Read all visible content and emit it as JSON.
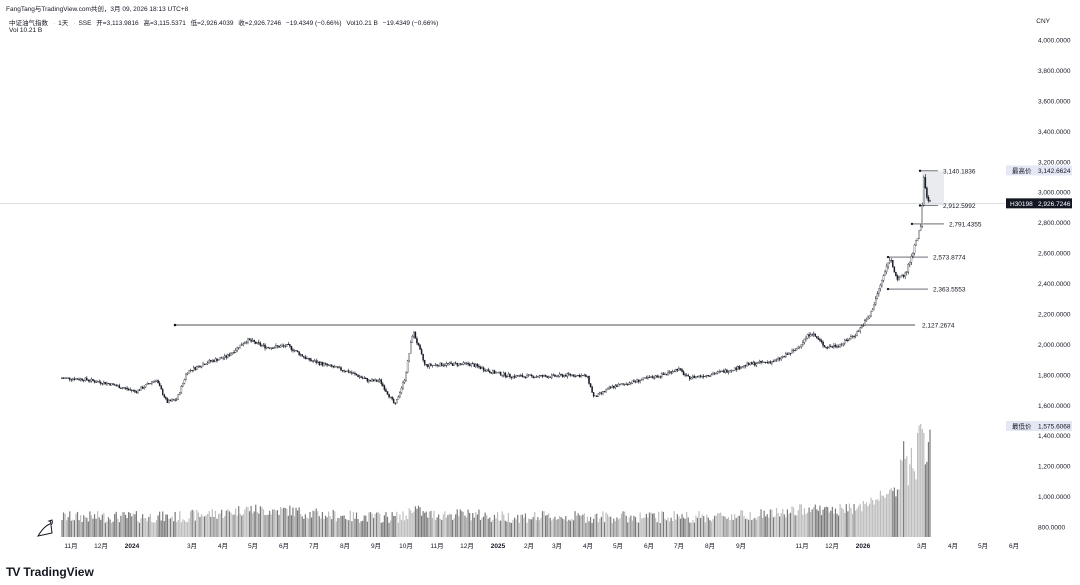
{
  "attribution": "FangTang与TradingView.com共创，3月 09, 2026 18:13 UTC+8",
  "symbol": {
    "name": "中证油气指数",
    "interval": "1天",
    "exchange": "SSE",
    "open": "开=3,113.9816",
    "high": "高=3,115.5371",
    "low": "低=2,926.4039",
    "close": "收=2,926.7246",
    "change": "−19.4349 (−0.66%)",
    "vol": "Vol10.21 B",
    "change2": "−19.4349 (−0.66%)"
  },
  "volume_legend": "Vol  10.21 B",
  "currency": "CNY",
  "colors": {
    "candle": "#131722",
    "volume_up": "#bdbdbd",
    "volume_down": "#7a7a7a",
    "axis_text": "#131722",
    "last_price_bg": "#131722",
    "label_bg": "#e3e8f4"
  },
  "chart_data": {
    "type": "candlestick",
    "y_axis_ticks": [
      "4,000.0000",
      "3,800.0000",
      "3,600.0000",
      "3,400.0000",
      "3,200.0000",
      "3,000.0000",
      "2,800.0000",
      "2,600.0000",
      "2,400.0000",
      "2,200.0000",
      "2,000.0000",
      "1,800.0000",
      "1,600.0000",
      "1,400.0000",
      "1,200.0000",
      "1,000.0000",
      "800.0000"
    ],
    "y_axis_tick_values": [
      4000,
      3800,
      3600,
      3400,
      3200,
      3000,
      2800,
      2600,
      2400,
      2200,
      2000,
      1800,
      1600,
      1400,
      1200,
      1000,
      800
    ],
    "x_axis_ticks": [
      "11月",
      "12月",
      "2024",
      "3月",
      "4月",
      "5月",
      "6月",
      "7月",
      "8月",
      "9月",
      "10月",
      "11月",
      "12月",
      "2025",
      "2月",
      "3月",
      "4月",
      "5月",
      "6月",
      "7月",
      "8月",
      "9月",
      "11月",
      "12月",
      "2026",
      "3月",
      "4月",
      "5月",
      "6月"
    ],
    "close_path": [
      [
        "2023-10-20",
        1780
      ],
      [
        "2023-11-15",
        1770
      ],
      [
        "2023-12-10",
        1740
      ],
      [
        "2024-01-05",
        1690
      ],
      [
        "2024-01-25",
        1770
      ],
      [
        "2024-02-05",
        1620
      ],
      [
        "2024-02-15",
        1640
      ],
      [
        "2024-02-25",
        1820
      ],
      [
        "2024-03-15",
        1880
      ],
      [
        "2024-04-05",
        1920
      ],
      [
        "2024-04-25",
        2030
      ],
      [
        "2024-05-15",
        1980
      ],
      [
        "2024-06-05",
        1990
      ],
      [
        "2024-06-25",
        1900
      ],
      [
        "2024-07-15",
        1860
      ],
      [
        "2024-08-05",
        1820
      ],
      [
        "2024-08-25",
        1760
      ],
      [
        "2024-09-05",
        1760
      ],
      [
        "2024-09-20",
        1600
      ],
      [
        "2024-09-30",
        1780
      ],
      [
        "2024-10-08",
        2090
      ],
      [
        "2024-10-20",
        1860
      ],
      [
        "2024-11-10",
        1870
      ],
      [
        "2024-12-05",
        1870
      ],
      [
        "2024-12-25",
        1820
      ],
      [
        "2025-01-15",
        1790
      ],
      [
        "2025-02-05",
        1790
      ],
      [
        "2025-02-25",
        1790
      ],
      [
        "2025-03-15",
        1800
      ],
      [
        "2025-03-31",
        1790
      ],
      [
        "2025-04-07",
        1650
      ],
      [
        "2025-04-25",
        1720
      ],
      [
        "2025-05-20",
        1760
      ],
      [
        "2025-06-15",
        1800
      ],
      [
        "2025-06-30",
        1840
      ],
      [
        "2025-07-10",
        1780
      ],
      [
        "2025-07-30",
        1800
      ],
      [
        "2025-08-20",
        1830
      ],
      [
        "2025-09-10",
        1870
      ],
      [
        "2025-10-05",
        1890
      ],
      [
        "2025-10-25",
        1960
      ],
      [
        "2025-11-10",
        2080
      ],
      [
        "2025-11-25",
        1980
      ],
      [
        "2025-12-10",
        2000
      ],
      [
        "2025-12-25",
        2070
      ],
      [
        "2026-01-08",
        2190
      ],
      [
        "2026-01-20",
        2420
      ],
      [
        "2026-01-28",
        2570
      ],
      [
        "2026-02-05",
        2420
      ],
      [
        "2026-02-13",
        2470
      ],
      [
        "2026-02-24",
        2690
      ],
      [
        "2026-02-28",
        2790
      ],
      [
        "2026-03-03",
        3120
      ],
      [
        "2026-03-05",
        2960
      ],
      [
        "2026-03-09",
        2926.7246
      ]
    ],
    "horizontal_line": {
      "value": 2127.2674,
      "label": "2,127.2674"
    },
    "level_markers": [
      {
        "value": 3140.1836,
        "label": "3,140.1836"
      },
      {
        "value": 2912.5992,
        "label": "2,912.5992"
      },
      {
        "value": 2791.4355,
        "label": "2,791.4355"
      },
      {
        "value": 2573.8774,
        "label": "2,573.8774"
      },
      {
        "value": 2363.5553,
        "label": "2,363.5553"
      }
    ],
    "highest": {
      "label": "最高价",
      "value": "3,142.6624"
    },
    "lowest": {
      "label": "最低价",
      "value": "1,575.6068"
    },
    "last_price": {
      "symbol": "H30198",
      "value": "2,926.7246",
      "numeric": 2926.7246
    }
  },
  "branding": {
    "logo": "TV",
    "name": "TradingView"
  }
}
